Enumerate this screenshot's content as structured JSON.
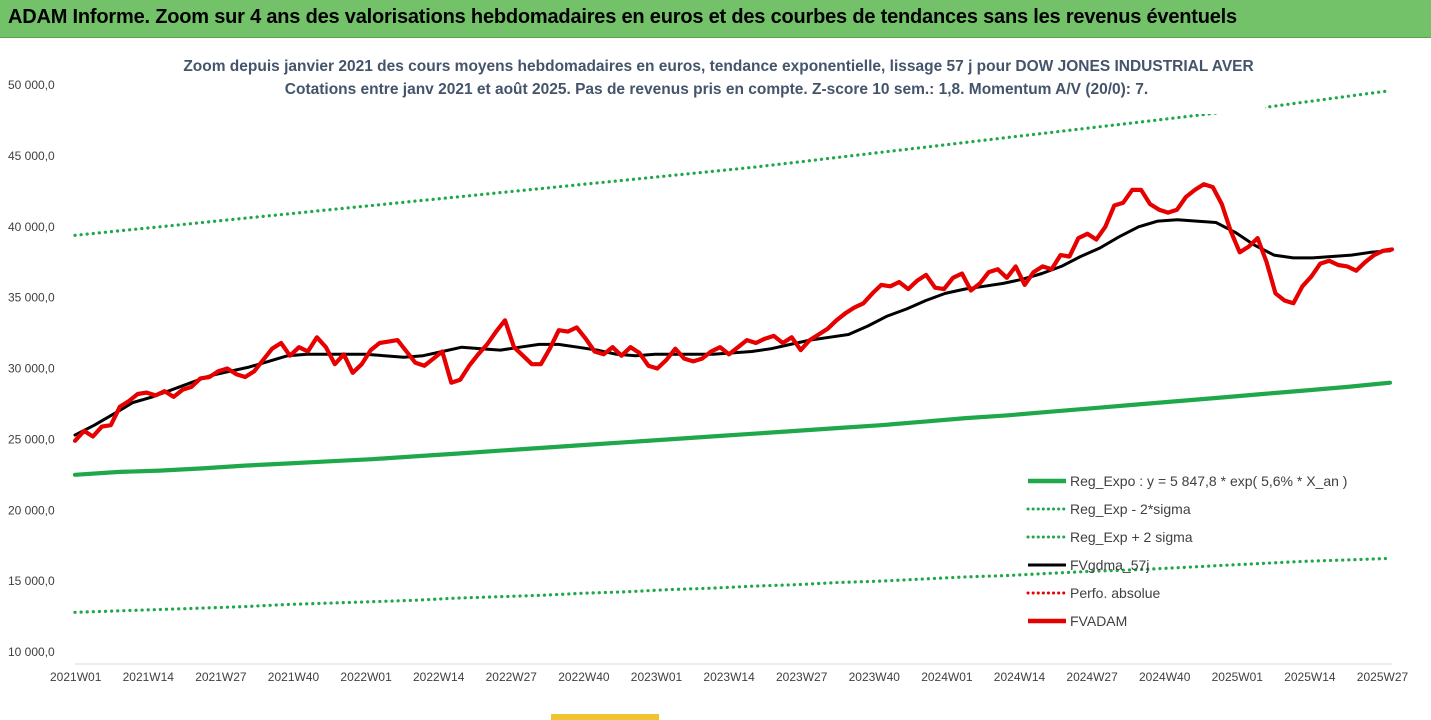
{
  "header": {
    "text": "ADAM Informe. Zoom sur 4 ans des valorisations hebdomadaires en euros et des courbes de tendances sans les revenus éventuels"
  },
  "colors": {
    "header_bg": "#73c26a",
    "trend": "#1fa84a",
    "band": "#1fa84a",
    "smooth": "#000000",
    "price": "#e60000",
    "perf": "#e60000"
  },
  "chart_data": {
    "type": "line",
    "title": "Zoom depuis janvier 2021 des cours moyens hebdomadaires en euros, tendance exponentielle, lissage 57 j pour DOW JONES INDUSTRIAL AVER",
    "subtitle": "Cotations entre janv 2021 et août 2025.  Pas de revenus pris en compte. Z-score 10 sem.: 1,8. Momentum A/V (20/0): 7.",
    "xlabel": "",
    "ylabel": "",
    "ylim": [
      10000,
      50000
    ],
    "yticks": [
      10000,
      15000,
      20000,
      25000,
      30000,
      35000,
      40000,
      45000,
      50000
    ],
    "ytick_labels": [
      "10 000,0",
      "15 000,0",
      "20 000,0",
      "25 000,0",
      "30 000,0",
      "35 000,0",
      "40 000,0",
      "45 000,0",
      "50 000,0"
    ],
    "x_tick_labels": [
      "2021W01",
      "2021W14",
      "2021W27",
      "2021W40",
      "2022W01",
      "2022W14",
      "2022W27",
      "2022W40",
      "2023W01",
      "2023W14",
      "2023W27",
      "2023W40",
      "2024W01",
      "2024W14",
      "2024W27",
      "2024W40",
      "2025W01",
      "2025W14",
      "2025W27"
    ],
    "n_weeks": 240,
    "grid": false,
    "legend_position": "bottom-right",
    "series": [
      {
        "name": "Reg_Expo : y = 5 847,8 * exp( 5,6% *  X_an )",
        "style": "solid-thick",
        "color": "#1fa84a",
        "values": [
          22500,
          22700,
          22800,
          22950,
          23150,
          23300,
          23450,
          23600,
          23800,
          24000,
          24200,
          24400,
          24600,
          24800,
          25000,
          25200,
          25400,
          25600,
          25800,
          26000,
          26250,
          26500,
          26700,
          26950,
          27200,
          27450,
          27700,
          27950,
          28200,
          28450,
          28700,
          29000
        ]
      },
      {
        "name": "Reg_Exp - 2*sigma",
        "style": "dotted",
        "color": "#1fa84a",
        "values": [
          12800,
          12900,
          13000,
          13100,
          13200,
          13350,
          13450,
          13550,
          13650,
          13800,
          13900,
          14000,
          14150,
          14250,
          14400,
          14500,
          14650,
          14750,
          14900,
          15000,
          15150,
          15300,
          15400,
          15550,
          15700,
          15800,
          15950,
          16100,
          16250,
          16400,
          16500,
          16600
        ]
      },
      {
        "name": "Reg_Exp + 2 sigma",
        "style": "dotted",
        "color": "#1fa84a",
        "values": [
          39400,
          39700,
          40000,
          40300,
          40600,
          40900,
          41200,
          41500,
          41800,
          42100,
          42400,
          42700,
          43000,
          43300,
          43600,
          43900,
          44200,
          44550,
          44900,
          45250,
          45600,
          45950,
          46300,
          46650,
          47000,
          47350,
          47700,
          48050,
          48400,
          48800,
          49200,
          49600
        ]
      },
      {
        "name": "FVgdma_57j",
        "style": "solid",
        "color": "#000000",
        "values": [
          25300,
          26000,
          26800,
          27600,
          28000,
          28500,
          29000,
          29500,
          29800,
          30100,
          30500,
          30900,
          31000,
          31000,
          31000,
          31000,
          30900,
          30800,
          30900,
          31200,
          31500,
          31400,
          31300,
          31500,
          31700,
          31700,
          31500,
          31300,
          31000,
          30900,
          31000,
          31000,
          31000,
          31000,
          31100,
          31200,
          31400,
          31700,
          32000,
          32200,
          32400,
          33000,
          33700,
          34200,
          34800,
          35300,
          35600,
          35800,
          36000,
          36300,
          36700,
          37200,
          37900,
          38500,
          39300,
          40000,
          40400,
          40500,
          40400,
          40300,
          39600,
          38700,
          38000,
          37800,
          37800,
          37900,
          38000,
          38200,
          38300
        ]
      },
      {
        "name": "Perfo. absolue",
        "style": "dotted",
        "color": "#e60000",
        "values": []
      },
      {
        "name": "FVADAM",
        "style": "solid-thick",
        "color": "#e60000",
        "values": [
          24900,
          25600,
          25200,
          25900,
          26000,
          27300,
          27700,
          28200,
          28300,
          28100,
          28400,
          28000,
          28500,
          28700,
          29300,
          29400,
          29800,
          30000,
          29600,
          29400,
          29800,
          30600,
          31400,
          31800,
          30900,
          31500,
          31200,
          32200,
          31500,
          30300,
          31000,
          29700,
          30300,
          31300,
          31800,
          31900,
          32000,
          31200,
          30400,
          30200,
          30700,
          31200,
          29000,
          29200,
          30200,
          31000,
          31700,
          32600,
          33400,
          31500,
          30900,
          30300,
          30300,
          31400,
          32700,
          32600,
          32900,
          32100,
          31200,
          31000,
          31500,
          30900,
          31500,
          31100,
          30200,
          30000,
          30600,
          31400,
          30700,
          30500,
          30700,
          31200,
          31500,
          31000,
          31500,
          32000,
          31800,
          32100,
          32300,
          31800,
          32200,
          31300,
          32000,
          32400,
          32800,
          33400,
          33900,
          34300,
          34600,
          35300,
          35900,
          35800,
          36100,
          35600,
          36200,
          36600,
          35700,
          35600,
          36400,
          36700,
          35500,
          36000,
          36800,
          37000,
          36400,
          37200,
          35900,
          36800,
          37200,
          37000,
          38000,
          37900,
          39200,
          39500,
          39100,
          40000,
          41500,
          41700,
          42600,
          42600,
          41600,
          41200,
          41000,
          41200,
          42100,
          42600,
          43000,
          42800,
          41600,
          39700,
          38200,
          38600,
          39200,
          37500,
          35300,
          34800,
          34600,
          35800,
          36500,
          37400,
          37600,
          37300,
          37200,
          36900,
          37500,
          38000,
          38300,
          38400
        ]
      }
    ]
  }
}
